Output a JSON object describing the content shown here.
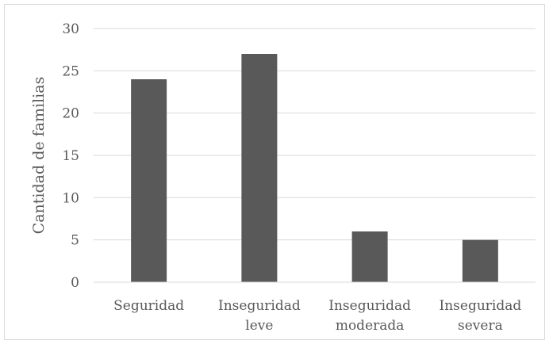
{
  "chart_data": {
    "type": "bar",
    "categories": [
      [
        "Seguridad"
      ],
      [
        "Inseguridad",
        "leve"
      ],
      [
        "Inseguridad",
        "moderada"
      ],
      [
        "Inseguridad",
        "severa"
      ]
    ],
    "values": [
      24,
      27,
      6,
      5
    ],
    "ylabel": "Cantidad de familias",
    "ylim": [
      0,
      30
    ],
    "yticks": [
      0,
      5,
      10,
      15,
      20,
      25,
      30
    ],
    "grid": true,
    "legend": "none",
    "bar_color": "#595959",
    "grid_color": "#d9d9d9"
  }
}
